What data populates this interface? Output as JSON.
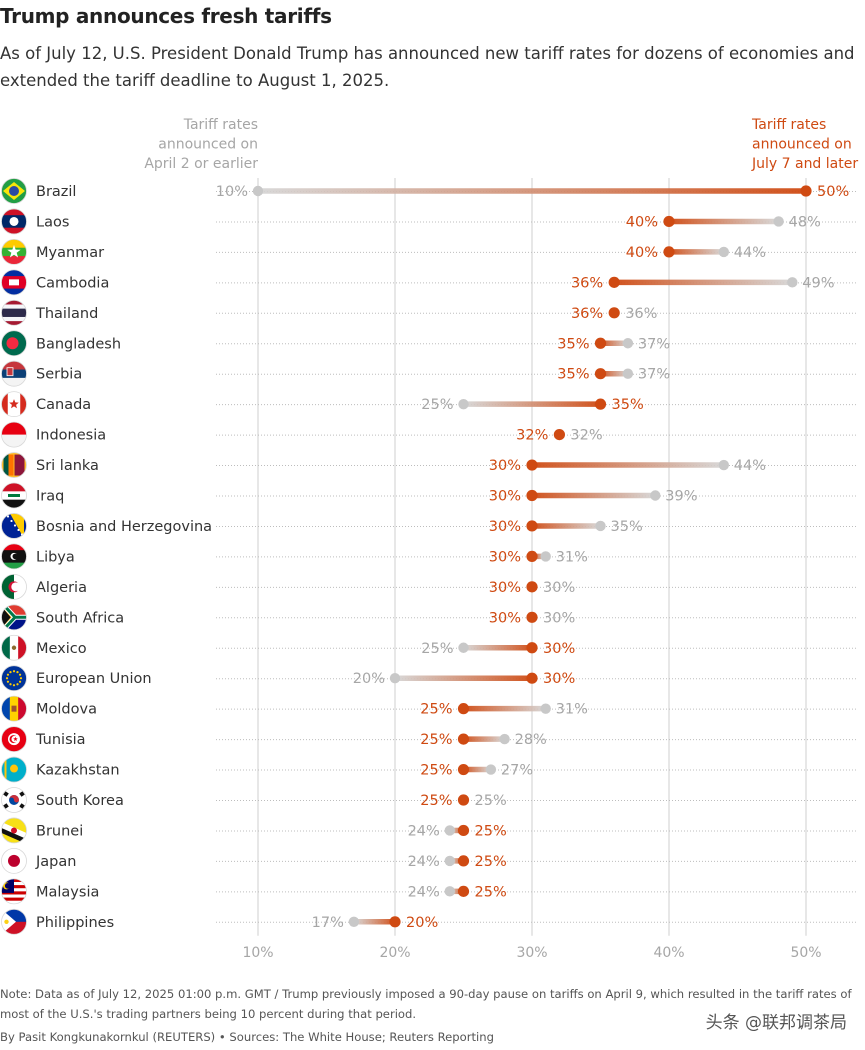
{
  "header": {
    "title": "Trump announces fresh tariffs",
    "subtitle": "As of July 12, U.S. President Donald Trump has announced new tariff rates for dozens of economies and extended the tariff deadline to August 1, 2025."
  },
  "chart_data": {
    "type": "dot-range",
    "legend_left": [
      "Tariff rates",
      "announced on",
      "April 2 or earlier"
    ],
    "legend_right": [
      "Tariff rates",
      "announced on",
      "July 7 and later"
    ],
    "xlim": [
      10,
      50
    ],
    "xticks": [
      10,
      20,
      30,
      40,
      50
    ],
    "xtick_suffix": "%",
    "grid": true,
    "colors": {
      "old": "#c8c8c8",
      "new": "#cf4a12",
      "old_label": "#a6a6a6",
      "grid": "#cfcfcf"
    },
    "rows": [
      {
        "country": "Brazil",
        "flag": "brazil",
        "old": 10,
        "new": 50
      },
      {
        "country": "Laos",
        "flag": "laos",
        "old": 48,
        "new": 40
      },
      {
        "country": "Myanmar",
        "flag": "myanmar",
        "old": 44,
        "new": 40
      },
      {
        "country": "Cambodia",
        "flag": "cambodia",
        "old": 49,
        "new": 36
      },
      {
        "country": "Thailand",
        "flag": "thailand",
        "old": 36,
        "new": 36
      },
      {
        "country": "Bangladesh",
        "flag": "bangladesh",
        "old": 37,
        "new": 35
      },
      {
        "country": "Serbia",
        "flag": "serbia",
        "old": 37,
        "new": 35
      },
      {
        "country": "Canada",
        "flag": "canada",
        "old": 25,
        "new": 35
      },
      {
        "country": "Indonesia",
        "flag": "indonesia",
        "old": 32,
        "new": 32
      },
      {
        "country": "Sri lanka",
        "flag": "srilanka",
        "old": 44,
        "new": 30
      },
      {
        "country": "Iraq",
        "flag": "iraq",
        "old": 39,
        "new": 30
      },
      {
        "country": "Bosnia and Herzegovina",
        "flag": "bosnia",
        "old": 35,
        "new": 30
      },
      {
        "country": "Libya",
        "flag": "libya",
        "old": 31,
        "new": 30
      },
      {
        "country": "Algeria",
        "flag": "algeria",
        "old": 30,
        "new": 30
      },
      {
        "country": "South Africa",
        "flag": "southafrica",
        "old": 30,
        "new": 30
      },
      {
        "country": "Mexico",
        "flag": "mexico",
        "old": 25,
        "new": 30
      },
      {
        "country": "European Union",
        "flag": "eu",
        "old": 20,
        "new": 30
      },
      {
        "country": "Moldova",
        "flag": "moldova",
        "old": 31,
        "new": 25
      },
      {
        "country": "Tunisia",
        "flag": "tunisia",
        "old": 28,
        "new": 25
      },
      {
        "country": "Kazakhstan",
        "flag": "kazakhstan",
        "old": 27,
        "new": 25
      },
      {
        "country": "South Korea",
        "flag": "southkorea",
        "old": 25,
        "new": 25
      },
      {
        "country": "Brunei",
        "flag": "brunei",
        "old": 24,
        "new": 25
      },
      {
        "country": "Japan",
        "flag": "japan",
        "old": 24,
        "new": 25
      },
      {
        "country": "Malaysia",
        "flag": "malaysia",
        "old": 24,
        "new": 25
      },
      {
        "country": "Philippines",
        "flag": "philippines",
        "old": 17,
        "new": 20
      }
    ]
  },
  "footer": {
    "note": "Note: Data as of July 12, 2025 01:00 p.m. GMT / Trump previously imposed a 90-day pause on tariffs on April 9, which resulted in the tariff rates of most of the U.S.'s trading partners being 10 percent during that period.",
    "byline": "By Pasit Kongkunakornkul (REUTERS) • Sources: The White House; Reuters Reporting",
    "watermark": "头条 @联邦调茶局"
  }
}
